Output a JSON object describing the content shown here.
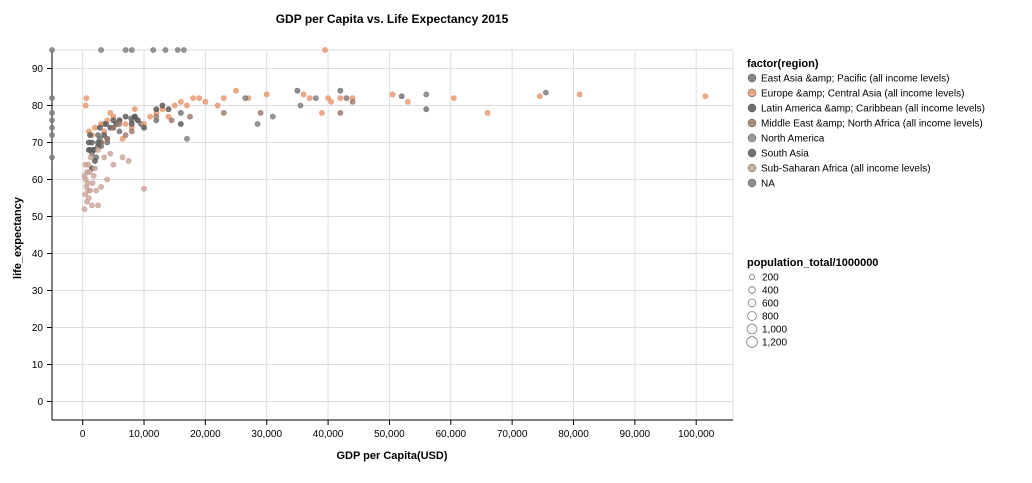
{
  "chart_data": {
    "type": "scatter",
    "title": "GDP per Capita vs. Life Expectancy 2015",
    "xlabel": "GDP per Capita(USD)",
    "ylabel": "life_expectancy",
    "xlim": [
      -5000,
      106000
    ],
    "ylim": [
      -5,
      95
    ],
    "x_ticks": [
      0,
      10000,
      20000,
      30000,
      40000,
      50000,
      60000,
      70000,
      80000,
      90000,
      100000
    ],
    "x_tick_labels": [
      "0",
      "10,000",
      "20,000",
      "30,000",
      "40,000",
      "50,000",
      "60,000",
      "70,000",
      "80,000",
      "90,000",
      "100,000"
    ],
    "y_ticks": [
      0,
      10,
      20,
      30,
      40,
      50,
      60,
      70,
      80,
      90
    ],
    "y_tick_labels": [
      "0",
      "10",
      "20",
      "30",
      "40",
      "50",
      "60",
      "70",
      "80",
      "90"
    ],
    "grid": true,
    "legend_color": {
      "title": "factor(region)",
      "placement": "right",
      "entries": [
        {
          "label": "East Asia &amp; Pacific (all income levels)",
          "color": "#6e6e6e"
        },
        {
          "label": "Europe &amp; Central Asia (all income levels)",
          "color": "#e8956b"
        },
        {
          "label": "Latin America &amp; Caribbean (all income levels)",
          "color": "#555555"
        },
        {
          "label": "Middle East &amp; North Africa (all income levels)",
          "color": "#9c7868"
        },
        {
          "label": "North America",
          "color": "#888888"
        },
        {
          "label": "South Asia",
          "color": "#5a5a5a"
        },
        {
          "label": "Sub-Saharan Africa (all income levels)",
          "color": "#c9a396"
        },
        {
          "label": "NA",
          "color": "#7a7a7a"
        }
      ]
    },
    "legend_size": {
      "title": "population_total/1000000",
      "placement": "right",
      "entries": [
        {
          "label": "200",
          "value": 200
        },
        {
          "label": "400",
          "value": 400
        },
        {
          "label": "600",
          "value": 600
        },
        {
          "label": "800",
          "value": 800
        },
        {
          "label": "1,000",
          "value": 1000
        },
        {
          "label": "1,200",
          "value": 1200
        }
      ]
    },
    "series": [
      {
        "name": "East Asia &amp; Pacific (all income levels)",
        "color": "#6e6e6e",
        "points": [
          [
            2500,
            72
          ],
          [
            3500,
            75
          ],
          [
            8000,
            76
          ],
          [
            7900,
            76.5
          ],
          [
            12000,
            76
          ],
          [
            16000,
            78
          ],
          [
            35000,
            84
          ],
          [
            42000,
            84
          ],
          [
            52000,
            82.5
          ],
          [
            56000,
            79
          ],
          [
            3000,
            69
          ],
          [
            1500,
            67
          ],
          [
            9500,
            75
          ],
          [
            5000,
            74
          ],
          [
            4000,
            70
          ],
          [
            1200,
            68
          ],
          [
            2200,
            66
          ],
          [
            6000,
            73
          ],
          [
            8500,
            77
          ],
          [
            2800,
            71
          ]
        ]
      },
      {
        "name": "Europe &amp; Central Asia (all income levels)",
        "color": "#e8956b",
        "points": [
          [
            500,
            80
          ],
          [
            600,
            82
          ],
          [
            1000,
            73
          ],
          [
            2000,
            74
          ],
          [
            3000,
            75
          ],
          [
            4000,
            76
          ],
          [
            4500,
            78
          ],
          [
            5000,
            77
          ],
          [
            6000,
            76
          ],
          [
            7000,
            75
          ],
          [
            8000,
            74
          ],
          [
            9000,
            76
          ],
          [
            10000,
            75
          ],
          [
            11000,
            77
          ],
          [
            12000,
            78
          ],
          [
            13000,
            79
          ],
          [
            14000,
            77
          ],
          [
            15000,
            80
          ],
          [
            16000,
            81
          ],
          [
            17000,
            80
          ],
          [
            18000,
            82
          ],
          [
            19000,
            82
          ],
          [
            20000,
            81
          ],
          [
            22000,
            80
          ],
          [
            23000,
            82
          ],
          [
            25000,
            84
          ],
          [
            27000,
            82
          ],
          [
            30000,
            83
          ],
          [
            36000,
            83
          ],
          [
            37000,
            82
          ],
          [
            39000,
            78
          ],
          [
            40000,
            82
          ],
          [
            40500,
            81
          ],
          [
            42000,
            82
          ],
          [
            43000,
            82
          ],
          [
            44000,
            82
          ],
          [
            50500,
            83
          ],
          [
            53000,
            81
          ],
          [
            60500,
            82
          ],
          [
            66000,
            78
          ],
          [
            74500,
            82.5
          ],
          [
            81000,
            83
          ],
          [
            101500,
            82.5
          ],
          [
            39500,
            95
          ],
          [
            3500,
            73
          ],
          [
            6500,
            71
          ],
          [
            8500,
            79
          ],
          [
            1500,
            72
          ]
        ]
      },
      {
        "name": "Latin America &amp; Caribbean (all income levels)",
        "color": "#555555",
        "points": [
          [
            1500,
            63
          ],
          [
            2000,
            65
          ],
          [
            2500,
            69
          ],
          [
            3000,
            70
          ],
          [
            3500,
            72
          ],
          [
            4000,
            71
          ],
          [
            4500,
            74
          ],
          [
            5000,
            76
          ],
          [
            5500,
            75
          ],
          [
            6000,
            76
          ],
          [
            7000,
            77
          ],
          [
            8000,
            75
          ],
          [
            8500,
            77
          ],
          [
            9000,
            76
          ],
          [
            10000,
            74
          ],
          [
            12000,
            79
          ],
          [
            13000,
            80
          ],
          [
            14000,
            79
          ],
          [
            16000,
            75
          ],
          [
            1000,
            70
          ],
          [
            1800,
            68
          ],
          [
            2800,
            74
          ]
        ]
      },
      {
        "name": "Middle East &amp; North Africa (all income levels)",
        "color": "#9c7868",
        "points": [
          [
            3000,
            70
          ],
          [
            4000,
            71
          ],
          [
            5000,
            74
          ],
          [
            6000,
            75
          ],
          [
            7000,
            72
          ],
          [
            8000,
            73
          ],
          [
            12000,
            77
          ],
          [
            14500,
            76
          ],
          [
            17500,
            77
          ],
          [
            23000,
            78
          ],
          [
            29000,
            78
          ],
          [
            42000,
            78
          ],
          [
            44000,
            81
          ]
        ]
      },
      {
        "name": "North America",
        "color": "#888888",
        "points": [
          [
            43000,
            82
          ],
          [
            56000,
            79
          ]
        ]
      },
      {
        "name": "South Asia",
        "color": "#5a5a5a",
        "points": [
          [
            1000,
            68
          ],
          [
            1500,
            70
          ],
          [
            2500,
            70
          ],
          [
            3800,
            75
          ],
          [
            1200,
            72
          ],
          [
            1800,
            68
          ]
        ]
      },
      {
        "name": "Sub-Saharan Africa (all income levels)",
        "color": "#c9a396",
        "points": [
          [
            300,
            52
          ],
          [
            400,
            56
          ],
          [
            500,
            60
          ],
          [
            600,
            58
          ],
          [
            700,
            62
          ],
          [
            800,
            59
          ],
          [
            900,
            64
          ],
          [
            1000,
            55
          ],
          [
            1200,
            57
          ],
          [
            1500,
            53
          ],
          [
            1800,
            61
          ],
          [
            2000,
            63
          ],
          [
            2200,
            57
          ],
          [
            2500,
            53
          ],
          [
            3000,
            58
          ],
          [
            3500,
            66
          ],
          [
            4000,
            60
          ],
          [
            5000,
            64
          ],
          [
            6500,
            66
          ],
          [
            7500,
            65
          ],
          [
            10000,
            57.5
          ],
          [
            300,
            61
          ],
          [
            450,
            64
          ],
          [
            700,
            54
          ],
          [
            900,
            57
          ],
          [
            1100,
            62
          ],
          [
            1300,
            66
          ],
          [
            1600,
            59
          ],
          [
            2500,
            68
          ],
          [
            4500,
            67
          ]
        ]
      },
      {
        "name": "NA",
        "color": "#7a7a7a",
        "points": [
          [
            -5000,
            95
          ],
          [
            -5000,
            82
          ],
          [
            -5000,
            78
          ],
          [
            -5000,
            76
          ],
          [
            -5000,
            74
          ],
          [
            -5000,
            72
          ],
          [
            -5000,
            66
          ],
          [
            3000,
            95
          ],
          [
            7000,
            95
          ],
          [
            8000,
            95
          ],
          [
            11500,
            95
          ],
          [
            13500,
            95
          ],
          [
            15500,
            95
          ],
          [
            16500,
            95
          ],
          [
            17000,
            71
          ],
          [
            26500,
            82
          ],
          [
            28500,
            75
          ],
          [
            31000,
            77
          ],
          [
            35500,
            80
          ],
          [
            38000,
            82
          ],
          [
            56000,
            83
          ],
          [
            75500,
            83.5
          ]
        ]
      }
    ]
  }
}
